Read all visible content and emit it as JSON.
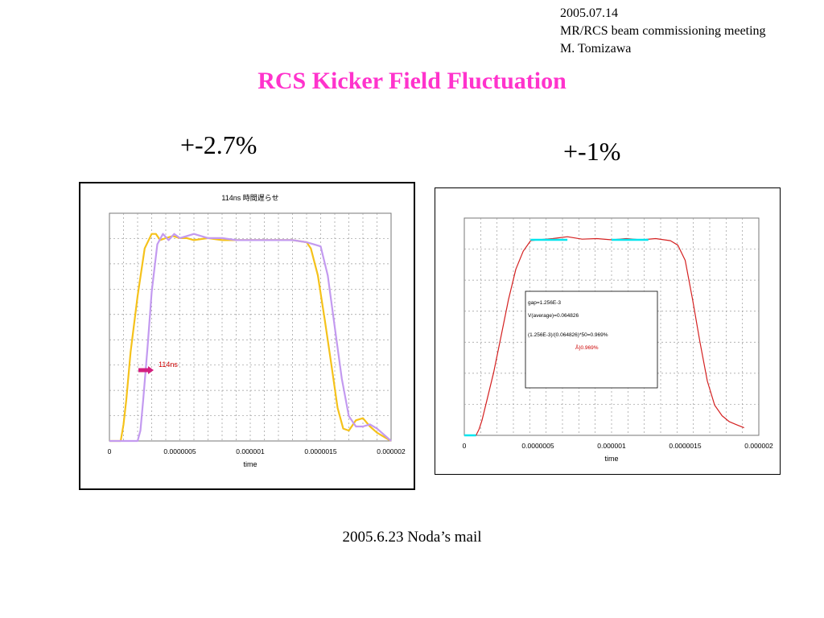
{
  "header": {
    "date": "2005.07.14",
    "meeting": "MR/RCS beam commissioning meeting",
    "author": "M. Tomizawa"
  },
  "title": "RCS Kicker Field Fluctuation",
  "left_label": "+-2.7%",
  "right_label": "+-1%",
  "footer": "2005.6.23 Noda’s mail",
  "colors": {
    "title": "#ff33cc",
    "series_yellow": "#f5c21b",
    "series_purple": "#c39af0",
    "series_red": "#d42020",
    "cyan_marker": "#00e5ee"
  },
  "chart_data": [
    {
      "type": "line",
      "title": "114ns 時間遅らせ",
      "xlabel": "time",
      "ylabel": "",
      "x_ticks": [
        "0",
        "0.0000005",
        "0.000001",
        "0.0000015",
        "0.000002"
      ],
      "xlim": [
        0,
        2e-06
      ],
      "ylim": [
        0,
        1.1
      ],
      "grid": true,
      "annotation": "114ns",
      "series": [
        {
          "color": "#f5c21b",
          "x": [
            0,
            8e-08,
            1e-07,
            1.2e-07,
            1.5e-07,
            2e-07,
            2.5e-07,
            3e-07,
            3.3e-07,
            3.6e-07,
            4e-07,
            4.5e-07,
            5e-07,
            5.5e-07,
            6e-07,
            7e-07,
            8e-07,
            9e-07,
            1e-06,
            1.1e-06,
            1.2e-06,
            1.3e-06,
            1.4e-06,
            1.43e-06,
            1.48e-06,
            1.53e-06,
            1.58e-06,
            1.62e-06,
            1.66e-06,
            1.7e-06,
            1.75e-06,
            1.8e-06,
            1.85e-06,
            1.9e-06,
            1.95e-06,
            2e-06
          ],
          "y": [
            0,
            0,
            0.08,
            0.2,
            0.43,
            0.7,
            0.93,
            1.0,
            1.0,
            0.97,
            0.98,
            0.99,
            0.98,
            0.98,
            0.97,
            0.98,
            0.97,
            0.97,
            0.97,
            0.97,
            0.97,
            0.97,
            0.96,
            0.93,
            0.8,
            0.58,
            0.35,
            0.16,
            0.06,
            0.05,
            0.1,
            0.11,
            0.07,
            0.04,
            0.02,
            0.0
          ]
        },
        {
          "color": "#c39af0",
          "x": [
            0,
            2e-07,
            2.2e-07,
            2.4e-07,
            2.7e-07,
            3e-07,
            3.4e-07,
            3.8e-07,
            4.2e-07,
            4.6e-07,
            5e-07,
            5.5e-07,
            6e-07,
            7e-07,
            8e-07,
            9e-07,
            1e-06,
            1.1e-06,
            1.2e-06,
            1.3e-06,
            1.4e-06,
            1.45e-06,
            1.5e-06,
            1.55e-06,
            1.6e-06,
            1.65e-06,
            1.7e-06,
            1.75e-06,
            1.8e-06,
            1.85e-06,
            1.9e-06,
            1.95e-06,
            2e-06
          ],
          "y": [
            0,
            0,
            0.05,
            0.2,
            0.45,
            0.72,
            0.95,
            1.0,
            0.97,
            1.0,
            0.98,
            0.99,
            1.0,
            0.98,
            0.98,
            0.97,
            0.97,
            0.97,
            0.97,
            0.97,
            0.96,
            0.95,
            0.94,
            0.8,
            0.55,
            0.3,
            0.12,
            0.07,
            0.07,
            0.08,
            0.06,
            0.03,
            0.0
          ]
        }
      ]
    },
    {
      "type": "line",
      "title": "",
      "xlabel": "time",
      "ylabel": "",
      "x_ticks": [
        "0",
        "0.0000005",
        "0.000001",
        "0.0000015",
        "0.000002"
      ],
      "xlim": [
        0,
        2e-06
      ],
      "ylim": [
        0,
        0.072
      ],
      "grid": true,
      "annotation_box": [
        "gap=1.256E-3",
        "V(average)=0.064826",
        "(1.256E-3)/(0.064826)*50=0.969%",
        "Å}0.969%"
      ],
      "series": [
        {
          "color": "#d42020",
          "x": [
            0,
            8e-08,
            1e-07,
            1.2e-07,
            1.5e-07,
            2e-07,
            2.5e-07,
            3e-07,
            3.5e-07,
            4e-07,
            4.5e-07,
            5e-07,
            6e-07,
            7e-07,
            8e-07,
            9e-07,
            1e-06,
            1.1e-06,
            1.2e-06,
            1.3e-06,
            1.4e-06,
            1.45e-06,
            1.5e-06,
            1.55e-06,
            1.6e-06,
            1.65e-06,
            1.7e-06,
            1.75e-06,
            1.8e-06,
            1.85e-06,
            1.9e-06
          ],
          "y": [
            0,
            0,
            0.002,
            0.005,
            0.011,
            0.021,
            0.033,
            0.045,
            0.055,
            0.061,
            0.0645,
            0.0648,
            0.0652,
            0.0658,
            0.065,
            0.0652,
            0.0648,
            0.0652,
            0.0648,
            0.0652,
            0.0645,
            0.063,
            0.058,
            0.045,
            0.031,
            0.018,
            0.01,
            0.0065,
            0.0045,
            0.0035,
            0.0025
          ]
        }
      ],
      "markers": [
        {
          "color": "#00e5ee",
          "x": [
            0,
            8e-08
          ],
          "y": [
            0,
            0
          ]
        },
        {
          "color": "#00e5ee",
          "x": [
            4.5e-07,
            7e-07
          ],
          "y": [
            0.0648,
            0.0648
          ]
        },
        {
          "color": "#00e5ee",
          "x": [
            1e-06,
            1.25e-06
          ],
          "y": [
            0.0648,
            0.0648
          ]
        }
      ]
    }
  ]
}
